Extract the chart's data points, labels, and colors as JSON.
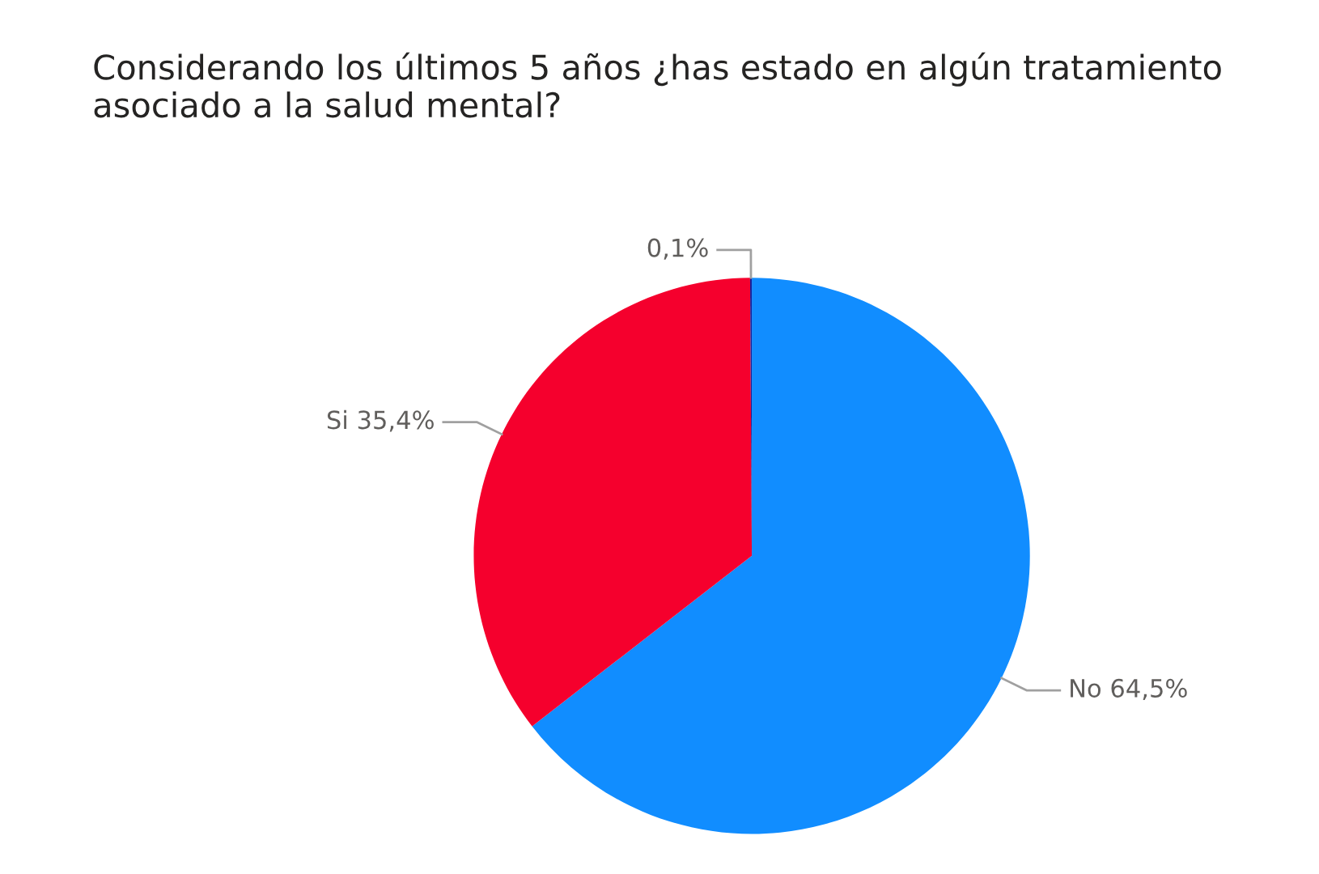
{
  "chart_data": {
    "type": "pie",
    "title": "Considerando los últimos 5 años ¿has estado en algún tratamiento asociado a la salud mental?",
    "categories": [
      "No",
      "Si",
      null
    ],
    "values": [
      64.5,
      35.4,
      0.1
    ],
    "value_labels": [
      "64,5%",
      "35,4%",
      "0,1%"
    ],
    "colors": [
      "#118dff",
      "#f5002d",
      "#12239e"
    ],
    "legend": false
  }
}
